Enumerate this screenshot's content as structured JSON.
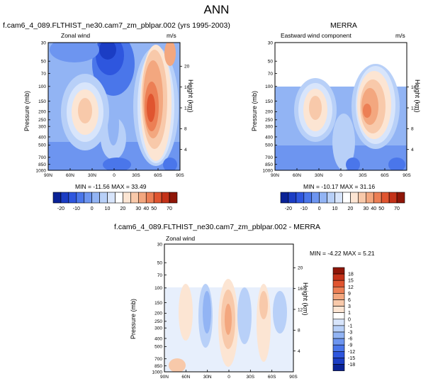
{
  "header": {
    "title": "ANN"
  },
  "colors": {
    "levels": [
      "#0a2296",
      "#1b3dc4",
      "#2e56de",
      "#4a76ea",
      "#6d95f0",
      "#92b4f4",
      "#b8d0f8",
      "#d8e5fb",
      "#ffffff",
      "#fce5d3",
      "#f8c9aa",
      "#f3a77f",
      "#ec7f55",
      "#e05530",
      "#c43219",
      "#8f1608"
    ]
  },
  "chart_data": [
    {
      "type": "contour",
      "name": "model",
      "title": "f.cam6_4_089.FLTHIST_ne30.cam7_zm_pblpar.002 (yrs 1995-2003)",
      "subtitle_left": "Zonal wind",
      "units": "m/s",
      "ylabel": "Pressure (mb)",
      "ylabel_right": "Height (km)",
      "x_ticks": [
        "90N",
        "60N",
        "30N",
        "0",
        "30S",
        "60S",
        "90S"
      ],
      "x_range": [
        90,
        -90
      ],
      "y_ticks": [
        "30",
        "50",
        "70",
        "100",
        "150",
        "200",
        "250",
        "300",
        "400",
        "500",
        "700",
        "850",
        "1000"
      ],
      "y_values": [
        30,
        50,
        70,
        100,
        150,
        200,
        250,
        300,
        400,
        500,
        700,
        850,
        1000
      ],
      "y_range": [
        30,
        1000
      ],
      "height_ticks": [
        "20",
        "16",
        "12",
        "8",
        "4"
      ],
      "height_values": [
        20,
        16,
        12,
        8,
        4
      ],
      "min": -11.56,
      "max": 33.49,
      "min_label": "MIN = -11.56  MAX = 33.49"
    },
    {
      "type": "contour",
      "name": "merra",
      "title": "MERRA",
      "subtitle_left": "Eastward wind component",
      "units": "m/s",
      "ylabel": "Pressure (mb)",
      "ylabel_right": "Height (km)",
      "x_ticks": [
        "90N",
        "60N",
        "30N",
        "0",
        "30S",
        "60S",
        "90S"
      ],
      "x_range": [
        90,
        -90
      ],
      "y_ticks": [
        "30",
        "50",
        "70",
        "100",
        "150",
        "200",
        "250",
        "300",
        "400",
        "500",
        "700",
        "850",
        "1000"
      ],
      "y_values": [
        30,
        50,
        70,
        100,
        150,
        200,
        250,
        300,
        400,
        500,
        700,
        850,
        1000
      ],
      "y_range": [
        30,
        1000
      ],
      "data_top_pressure": 100,
      "height_ticks": [
        "16",
        "12",
        "8",
        "4"
      ],
      "height_values": [
        16,
        12,
        8,
        4
      ],
      "min": -10.17,
      "max": 31.16,
      "min_label": "MIN = -10.17  MAX = 31.16"
    },
    {
      "type": "contour",
      "name": "difference",
      "title": "f.cam6_4_089.FLTHIST_ne30.cam7_zm_pblpar.002 - MERRA",
      "subtitle_left": "Zonal wind",
      "ylabel": "Pressure (mb)",
      "ylabel_right": "Height (km)",
      "x_ticks": [
        "90N",
        "60N",
        "30N",
        "0",
        "30S",
        "60S",
        "90S"
      ],
      "x_range": [
        90,
        -90
      ],
      "y_ticks": [
        "30",
        "50",
        "70",
        "100",
        "150",
        "200",
        "250",
        "300",
        "400",
        "500",
        "700",
        "850",
        "1000"
      ],
      "y_values": [
        30,
        50,
        70,
        100,
        150,
        200,
        250,
        300,
        400,
        500,
        700,
        850,
        1000
      ],
      "y_range": [
        30,
        1000
      ],
      "data_top_pressure": 100,
      "height_ticks": [
        "20",
        "16",
        "12",
        "8",
        "4"
      ],
      "height_values": [
        20,
        16,
        12,
        8,
        4
      ],
      "min": -4.22,
      "max": 5.21,
      "min_label": "MIN = -4.22  MAX =  5.21"
    }
  ],
  "colorbar_main": {
    "labels": [
      "-20",
      "-10",
      "0",
      "10",
      "20",
      "30",
      "40",
      "50",
      "70"
    ]
  },
  "colorbar_diff": {
    "labels": [
      "18",
      "15",
      "12",
      "9",
      "6",
      "3",
      "1",
      "0",
      "-1",
      "-3",
      "-6",
      "-9",
      "-12",
      "-15",
      "-18"
    ]
  }
}
